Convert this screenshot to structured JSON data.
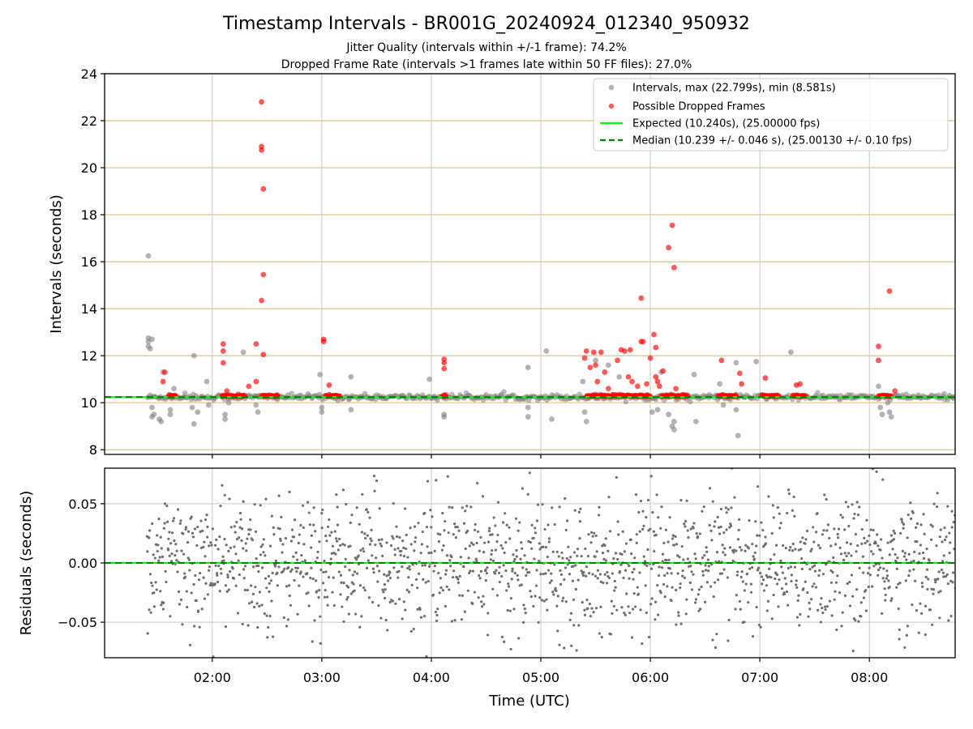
{
  "chart_data": {
    "title": "Timestamp Intervals - BR001G_20240924_012340_950932",
    "subtitles": [
      "Jitter Quality (intervals within +/-1 frame): 74.2%",
      "Dropped Frame Rate (intervals >1 frames late within 50 FF files): 27.0%"
    ],
    "xlabel": "Time (UTC)",
    "xlim": [
      "01:01",
      "08:47"
    ],
    "xticks": [
      "02:00",
      "03:00",
      "04:00",
      "05:00",
      "06:00",
      "07:00",
      "08:00"
    ],
    "panels": [
      {
        "name": "intervals",
        "type": "scatter",
        "ylabel": "Intervals (seconds)",
        "ylim": [
          7.8,
          24
        ],
        "yticks": [
          8,
          10,
          12,
          14,
          16,
          18,
          20,
          22,
          24
        ],
        "frame_lines": [
          8,
          10,
          12,
          14,
          16,
          18,
          20,
          22,
          24
        ],
        "vertical_grid": [
          "02:00",
          "03:00",
          "04:00",
          "05:00",
          "06:00",
          "07:00",
          "08:00"
        ],
        "legend": {
          "position": "upper right",
          "entries": [
            "Intervals, max (22.799s), min (8.581s)",
            "Possible Dropped Frames",
            "Expected (10.240s), (25.00000 fps)",
            "Median (10.239 +/- 0.046 s), (25.00130 +/- 0.10 fps)"
          ]
        },
        "expected_value": 10.24,
        "median_value": 10.239,
        "series": [
          {
            "name": "Intervals, max (22.799s), min (8.581s)",
            "color": "#808080",
            "points": [
              [
                "01:25",
                16.25
              ],
              [
                "01:25",
                12.75
              ],
              [
                "01:25",
                12.6
              ],
              [
                "01:25",
                12.4
              ],
              [
                "01:26",
                12.3
              ],
              [
                "01:27",
                12.7
              ],
              [
                "01:27",
                9.8
              ],
              [
                "01:27",
                9.4
              ],
              [
                "01:28",
                9.5
              ],
              [
                "01:31",
                9.3
              ],
              [
                "01:32",
                9.2
              ],
              [
                "01:33",
                11.3
              ],
              [
                "01:37",
                9.7
              ],
              [
                "01:37",
                9.5
              ],
              [
                "01:39",
                10.6
              ],
              [
                "01:45",
                10.4
              ],
              [
                "01:49",
                9.8
              ],
              [
                "01:50",
                12.0
              ],
              [
                "01:50",
                9.1
              ],
              [
                "01:52",
                9.6
              ],
              [
                "01:57",
                10.9
              ],
              [
                "01:58",
                9.9
              ],
              [
                "02:07",
                9.3
              ],
              [
                "02:07",
                9.5
              ],
              [
                "02:09",
                10.0
              ],
              [
                "02:17",
                12.15
              ],
              [
                "02:24",
                9.9
              ],
              [
                "02:25",
                9.6
              ],
              [
                "02:59",
                11.2
              ],
              [
                "03:00",
                9.8
              ],
              [
                "03:00",
                9.6
              ],
              [
                "03:07",
                10.3
              ],
              [
                "03:16",
                11.1
              ],
              [
                "03:16",
                9.7
              ],
              [
                "03:59",
                11.0
              ],
              [
                "04:07",
                9.5
              ],
              [
                "04:07",
                9.4
              ],
              [
                "04:53",
                11.5
              ],
              [
                "04:53",
                9.8
              ],
              [
                "04:53",
                9.4
              ],
              [
                "05:03",
                12.2
              ],
              [
                "05:06",
                9.3
              ],
              [
                "05:23",
                10.9
              ],
              [
                "05:24",
                9.6
              ],
              [
                "05:25",
                9.2
              ],
              [
                "05:30",
                11.8
              ],
              [
                "05:37",
                11.6
              ],
              [
                "05:43",
                11.1
              ],
              [
                "06:01",
                9.6
              ],
              [
                "06:04",
                9.7
              ],
              [
                "06:06",
                11.3
              ],
              [
                "06:10",
                9.5
              ],
              [
                "06:12",
                9.0
              ],
              [
                "06:13",
                8.85
              ],
              [
                "06:13",
                9.2
              ],
              [
                "06:24",
                11.2
              ],
              [
                "06:25",
                9.2
              ],
              [
                "06:38",
                10.8
              ],
              [
                "06:40",
                9.9
              ],
              [
                "06:47",
                11.7
              ],
              [
                "06:47",
                9.7
              ],
              [
                "06:48",
                8.6
              ],
              [
                "06:58",
                11.75
              ],
              [
                "07:17",
                12.15
              ],
              [
                "08:05",
                10.7
              ],
              [
                "08:06",
                9.8
              ],
              [
                "08:07",
                9.5
              ],
              [
                "08:10",
                10.0
              ],
              [
                "08:11",
                9.6
              ],
              [
                "08:12",
                9.4
              ]
            ]
          },
          {
            "name": "Possible Dropped Frames",
            "color": "#ff0000",
            "points": [
              [
                "01:33",
                10.9
              ],
              [
                "01:34",
                11.3
              ],
              [
                "01:38",
                10.3
              ],
              [
                "02:06",
                12.5
              ],
              [
                "02:06",
                12.2
              ],
              [
                "02:06",
                11.7
              ],
              [
                "02:08",
                10.5
              ],
              [
                "02:20",
                10.7
              ],
              [
                "02:24",
                12.5
              ],
              [
                "02:24",
                10.9
              ],
              [
                "02:27",
                22.8
              ],
              [
                "02:27",
                20.9
              ],
              [
                "02:27",
                20.75
              ],
              [
                "02:28",
                19.1
              ],
              [
                "02:28",
                15.45
              ],
              [
                "02:27",
                14.35
              ],
              [
                "02:28",
                12.05
              ],
              [
                "03:01",
                12.7
              ],
              [
                "03:01",
                12.6
              ],
              [
                "03:04",
                10.75
              ],
              [
                "04:07",
                11.85
              ],
              [
                "04:07",
                11.7
              ],
              [
                "04:07",
                11.45
              ],
              [
                "05:24",
                11.9
              ],
              [
                "05:25",
                12.2
              ],
              [
                "05:27",
                11.5
              ],
              [
                "05:29",
                12.15
              ],
              [
                "05:30",
                11.6
              ],
              [
                "05:31",
                10.9
              ],
              [
                "05:33",
                12.15
              ],
              [
                "05:35",
                11.3
              ],
              [
                "05:37",
                10.6
              ],
              [
                "05:42",
                11.8
              ],
              [
                "05:44",
                12.25
              ],
              [
                "05:46",
                12.2
              ],
              [
                "05:48",
                11.1
              ],
              [
                "05:49",
                12.25
              ],
              [
                "05:50",
                10.9
              ],
              [
                "05:53",
                10.7
              ],
              [
                "05:55",
                12.6
              ],
              [
                "05:55",
                14.45
              ],
              [
                "05:56",
                12.6
              ],
              [
                "05:58",
                10.8
              ],
              [
                "06:00",
                11.9
              ],
              [
                "06:02",
                12.9
              ],
              [
                "06:03",
                12.35
              ],
              [
                "06:03",
                11.1
              ],
              [
                "06:04",
                10.9
              ],
              [
                "06:05",
                10.7
              ],
              [
                "06:07",
                11.35
              ],
              [
                "06:10",
                16.6
              ],
              [
                "06:12",
                17.55
              ],
              [
                "06:13",
                15.75
              ],
              [
                "06:14",
                10.6
              ],
              [
                "06:39",
                11.8
              ],
              [
                "06:49",
                11.25
              ],
              [
                "06:50",
                10.8
              ],
              [
                "07:03",
                11.05
              ],
              [
                "07:20",
                10.75
              ],
              [
                "07:22",
                10.8
              ],
              [
                "08:05",
                12.4
              ],
              [
                "08:05",
                11.8
              ],
              [
                "08:07",
                10.3
              ],
              [
                "08:11",
                14.75
              ],
              [
                "08:14",
                10.5
              ]
            ]
          },
          {
            "name": "Expected (10.240s), (25.00000 fps)",
            "color": "#00ff00",
            "style": "solid"
          },
          {
            "name": "Median (10.239 +/- 0.046 s), (25.00130 +/- 0.10 fps)",
            "color": "#008000",
            "style": "dashed"
          }
        ]
      },
      {
        "name": "residuals",
        "type": "scatter",
        "ylabel": "Residuals (seconds)",
        "ylim": [
          -0.08,
          0.08
        ],
        "yticks": [
          "0.05",
          "0.00",
          "−0.05"
        ],
        "yticks_values": [
          0.05,
          0.0,
          -0.05
        ],
        "series": [
          {
            "name": "Residuals",
            "color": "#808080",
            "description": "dense scatter of residuals spread between about -0.08 and 0.08 from 01:24 to 08:47"
          },
          {
            "name": "Zero line",
            "color": "#00ff00",
            "value": 0.0
          }
        ]
      }
    ]
  },
  "colors": {
    "interval_points": "#808080",
    "dropped_points": "#ff0000",
    "expected_line": "#00ff00",
    "median_line": "#008000",
    "frame_grid": "#d4c483",
    "time_grid": "#c8c8c8"
  }
}
